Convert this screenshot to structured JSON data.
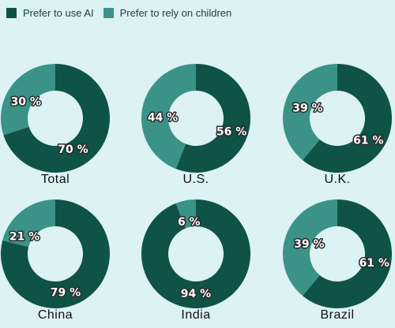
{
  "legend": {
    "ai_label": "Prefer to use AI",
    "children_label": "Prefer to rely on children"
  },
  "colors": {
    "background": "#dcf2f4",
    "ai": "#0f5247",
    "children": "#3a9386",
    "hole": "#dcf2f4"
  },
  "chart_data": {
    "type": "pie",
    "series": [
      {
        "name": "Prefer to use AI"
      },
      {
        "name": "Prefer to rely on children"
      }
    ],
    "charts": [
      {
        "title": "Total",
        "values": [
          70,
          30
        ],
        "labels": [
          "70 %",
          "30 %"
        ]
      },
      {
        "title": "U.S.",
        "values": [
          56,
          44
        ],
        "labels": [
          "56 %",
          "44 %"
        ]
      },
      {
        "title": "U.K.",
        "values": [
          61,
          39
        ],
        "labels": [
          "61 %",
          "39 %"
        ]
      },
      {
        "title": "China",
        "values": [
          79,
          21
        ],
        "labels": [
          "79 %",
          "21 %"
        ]
      },
      {
        "title": "India",
        "values": [
          94,
          6
        ],
        "labels": [
          "94 %",
          "6 %"
        ]
      },
      {
        "title": "Brazil",
        "values": [
          61,
          39
        ],
        "labels": [
          "61 %",
          "39 %"
        ]
      }
    ]
  }
}
